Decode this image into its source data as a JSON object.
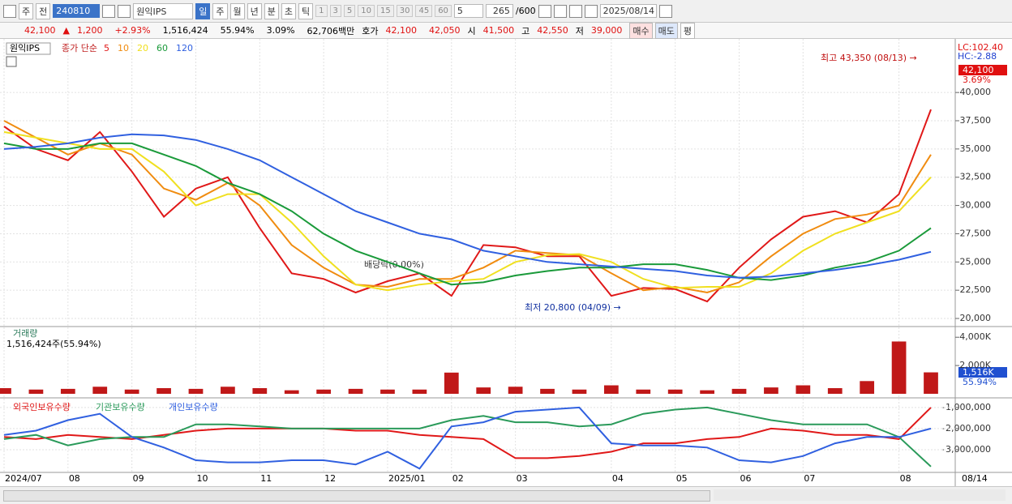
{
  "toolbar": {
    "items": [
      "주",
      "전",
      "240810",
      "원익IPS",
      "일",
      "주",
      "월",
      "년",
      "분",
      "초",
      "틱",
      "1",
      "3",
      "5",
      "10",
      "15",
      "30",
      "45",
      "60",
      "5",
      "265",
      "/600",
      "2025/08/14"
    ]
  },
  "infobar": {
    "items": [
      "42,100",
      "▲",
      "1,200",
      "+2.93%",
      "1,516,424",
      "55.94%",
      "3.09%",
      "62,706백만",
      "호가",
      "42,100",
      "42,050",
      "시",
      "41,500",
      "고",
      "42,550",
      "저",
      "39,000",
      "매수",
      "매도",
      "평"
    ]
  },
  "chart_data": [
    {
      "type": "line",
      "title": "원익IPS",
      "legend_title": "종가 단순",
      "categories": [
        "2024/07",
        null,
        "08",
        null,
        "09",
        null,
        "10",
        null,
        "11",
        null,
        "12",
        null,
        "2025/01",
        null,
        "02",
        null,
        "03",
        null,
        null,
        "04",
        null,
        "05",
        null,
        "06",
        null,
        "07",
        null,
        null,
        "08",
        null
      ],
      "end_label": "08/14",
      "series": [
        {
          "name": "5",
          "color": "#e01818",
          "values": [
            37000,
            35000,
            34000,
            36500,
            33000,
            29000,
            31500,
            32500,
            28000,
            24000,
            23500,
            22300,
            23300,
            24000,
            22000,
            26500,
            26300,
            25500,
            25500,
            22000,
            22700,
            22600,
            21500,
            24500,
            27000,
            29000,
            29500,
            28500,
            31000,
            38500
          ]
        },
        {
          "name": "10",
          "color": "#f08c10",
          "values": [
            37500,
            36000,
            34500,
            35500,
            34500,
            31500,
            30500,
            32000,
            30000,
            26500,
            24500,
            23000,
            22800,
            23500,
            23500,
            24500,
            26000,
            25800,
            25600,
            24000,
            22500,
            22800,
            22300,
            23200,
            25500,
            27500,
            28800,
            29200,
            30000,
            34500
          ]
        },
        {
          "name": "20",
          "color": "#f0e020",
          "values": [
            36500,
            36000,
            35500,
            35000,
            35000,
            33000,
            30000,
            31000,
            31000,
            28500,
            25500,
            23000,
            22500,
            23000,
            23300,
            23500,
            25000,
            25600,
            25700,
            25000,
            23500,
            22700,
            22800,
            22800,
            24000,
            26000,
            27500,
            28500,
            29500,
            32500
          ]
        },
        {
          "name": "60",
          "color": "#1a9a3a",
          "values": [
            35500,
            35000,
            35000,
            35500,
            35500,
            34500,
            33500,
            32000,
            31000,
            29500,
            27500,
            26000,
            25000,
            24000,
            23000,
            23200,
            23800,
            24200,
            24500,
            24500,
            24800,
            24800,
            24300,
            23600,
            23400,
            23800,
            24500,
            25000,
            26000,
            28000
          ]
        },
        {
          "name": "120",
          "color": "#3060e0",
          "values": [
            35000,
            35200,
            35500,
            36000,
            36300,
            36200,
            35800,
            35000,
            34000,
            32500,
            31000,
            29500,
            28500,
            27500,
            27000,
            26000,
            25500,
            25000,
            24800,
            24600,
            24400,
            24200,
            23800,
            23600,
            23700,
            24000,
            24300,
            24700,
            25200,
            25900
          ]
        }
      ],
      "ylim": [
        19500,
        44600
      ],
      "yticks": [
        {
          "value": 20000,
          "label": "20,000"
        },
        {
          "value": 22500,
          "label": "22,500"
        },
        {
          "value": 25000,
          "label": "25,000"
        },
        {
          "value": 27500,
          "label": "27,500"
        },
        {
          "value": 30000,
          "label": "30,000"
        },
        {
          "value": 32500,
          "label": "32,500"
        },
        {
          "value": 35000,
          "label": "35,000"
        },
        {
          "value": 37500,
          "label": "37,500"
        },
        {
          "value": 40000,
          "label": "40,000"
        }
      ],
      "grid": true,
      "annotations": [
        "최고 43,350 (08/13) →",
        "최저 20,800 (04/09) →",
        "배당락(0.00%)"
      ],
      "right_labels": [
        "LC:102.40",
        "HC:-2.88",
        "42,100",
        "3.69%"
      ]
    },
    {
      "type": "bar",
      "title": "거래량",
      "subtitle": "1,516,424주(55.94%)",
      "color": "#c01818",
      "values": [
        400,
        300,
        350,
        500,
        300,
        400,
        350,
        500,
        400,
        250,
        300,
        350,
        300,
        300,
        1500,
        450,
        500,
        350,
        300,
        600,
        300,
        300,
        250,
        350,
        450,
        600,
        400,
        900,
        3700,
        1516
      ],
      "ylim": [
        0,
        4700
      ],
      "yticks": [
        {
          "value": 2000,
          "label": "2,000K"
        },
        {
          "value": 4000,
          "label": "4,000K"
        }
      ],
      "right_labels": [
        "1,516K",
        "55.94%"
      ]
    },
    {
      "type": "line",
      "series": [
        {
          "name": "외국인보유수량",
          "color": "#e01818",
          "values": [
            -2400000,
            -2500000,
            -2300000,
            -2400000,
            -2500000,
            -2300000,
            -2100000,
            -2000000,
            -2000000,
            -2000000,
            -2000000,
            -2100000,
            -2100000,
            -2300000,
            -2400000,
            -2500000,
            -3400000,
            -3400000,
            -3300000,
            -3100000,
            -2700000,
            -2700000,
            -2500000,
            -2400000,
            -2000000,
            -2100000,
            -2300000,
            -2300000,
            -2500000,
            -1000000
          ]
        },
        {
          "name": "기관보유수량",
          "color": "#2a9a5a",
          "values": [
            -2500000,
            -2300000,
            -2800000,
            -2500000,
            -2400000,
            -2400000,
            -1800000,
            -1800000,
            -1900000,
            -2000000,
            -2000000,
            -2000000,
            -2000000,
            -2000000,
            -1600000,
            -1400000,
            -1700000,
            -1700000,
            -1900000,
            -1800000,
            -1300000,
            -1100000,
            -1000000,
            -1300000,
            -1600000,
            -1800000,
            -1800000,
            -1800000,
            -2400000,
            -3800000
          ]
        },
        {
          "name": "개인보유수량",
          "color": "#3060e0",
          "values": [
            -2300000,
            -2100000,
            -1600000,
            -1300000,
            -2400000,
            -2900000,
            -3500000,
            -3600000,
            -3600000,
            -3500000,
            -3500000,
            -3700000,
            -3100000,
            -3900000,
            -1900000,
            -1700000,
            -1200000,
            -1100000,
            -1000000,
            -2700000,
            -2800000,
            -2800000,
            -2900000,
            -3500000,
            -3600000,
            -3300000,
            -2700000,
            -2400000,
            -2400000,
            -2000000
          ]
        }
      ],
      "ylim": [
        -4040000,
        -580000
      ],
      "yticks": [
        {
          "value": -3000000,
          "label": "-3,000,000"
        },
        {
          "value": -2000000,
          "label": "-2,000,000"
        },
        {
          "value": -1000000,
          "label": "-1,000,000"
        }
      ],
      "grid": true
    }
  ]
}
